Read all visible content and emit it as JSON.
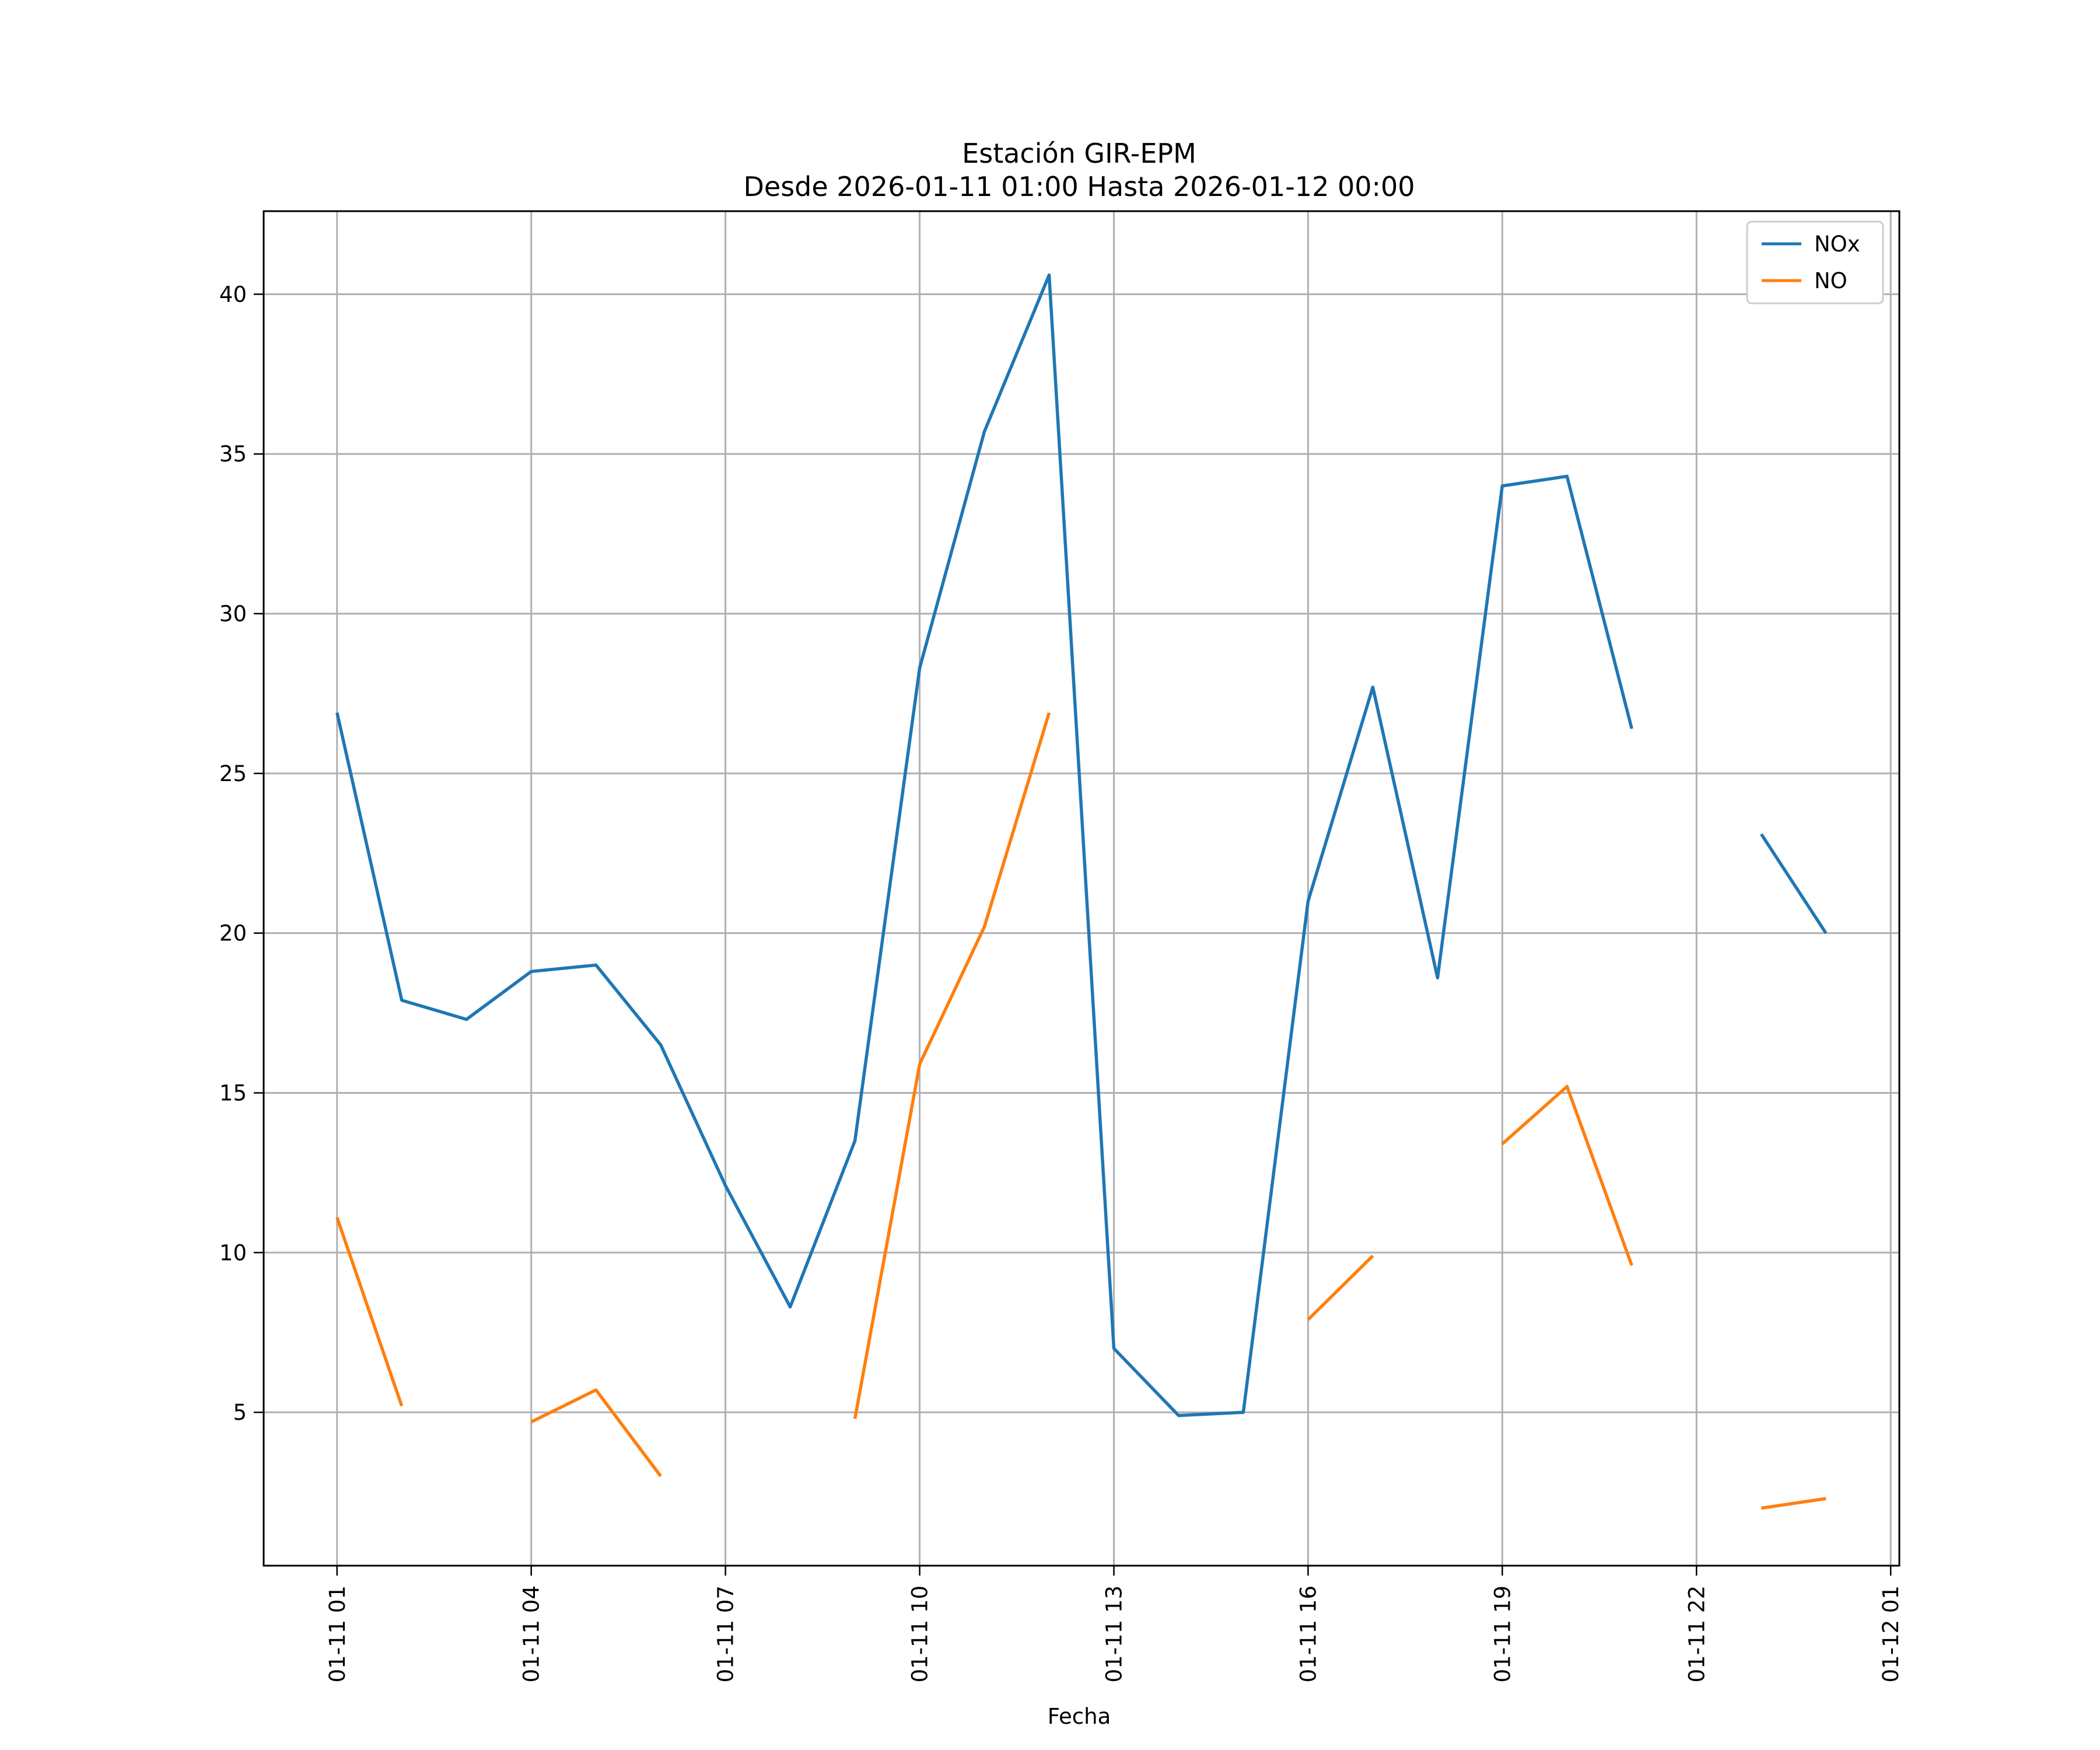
{
  "chart_data": {
    "type": "line",
    "title": "Estación GIR-EPM",
    "subtitle": "Desde 2026-01-11 01:00 Hasta 2026-01-12 00:00",
    "xlabel": "Fecha",
    "ylabel": "",
    "x": [
      "2026-01-11 01:00",
      "2026-01-11 02:00",
      "2026-01-11 03:00",
      "2026-01-11 04:00",
      "2026-01-11 05:00",
      "2026-01-11 06:00",
      "2026-01-11 07:00",
      "2026-01-11 08:00",
      "2026-01-11 09:00",
      "2026-01-11 10:00",
      "2026-01-11 11:00",
      "2026-01-11 12:00",
      "2026-01-11 13:00",
      "2026-01-11 14:00",
      "2026-01-11 15:00",
      "2026-01-11 16:00",
      "2026-01-11 17:00",
      "2026-01-11 18:00",
      "2026-01-11 19:00",
      "2026-01-11 20:00",
      "2026-01-11 21:00",
      "2026-01-11 22:00",
      "2026-01-11 23:00",
      "2026-01-12 00:00"
    ],
    "x_ticks": [
      "01-11 01",
      "01-11 04",
      "01-11 07",
      "01-11 10",
      "01-11 13",
      "01-11 16",
      "01-11 19",
      "01-11 22",
      "01-12 01"
    ],
    "y_ticks": [
      5,
      10,
      15,
      20,
      25,
      30,
      35,
      40
    ],
    "xlim": [
      "2026-01-10 23:52",
      "2026-01-12 01:08"
    ],
    "ylim": [
      0.2,
      42.6
    ],
    "grid": true,
    "legend": "top-right",
    "series": [
      {
        "name": "NOx",
        "color": "#1f77b4",
        "values": [
          26.9,
          17.9,
          17.3,
          18.8,
          19.0,
          16.5,
          12.1,
          8.3,
          13.5,
          28.3,
          35.7,
          40.6,
          7.0,
          4.9,
          5.0,
          21.0,
          27.7,
          18.6,
          34.0,
          34.3,
          26.4,
          null,
          23.1,
          20.0
        ]
      },
      {
        "name": "NO",
        "color": "#ff7f0e",
        "values": [
          11.1,
          5.2,
          null,
          4.7,
          5.7,
          3.0,
          null,
          null,
          4.8,
          15.9,
          20.2,
          26.9,
          null,
          null,
          null,
          7.9,
          9.9,
          null,
          13.4,
          15.2,
          9.6,
          null,
          2.0,
          2.3
        ]
      }
    ]
  }
}
